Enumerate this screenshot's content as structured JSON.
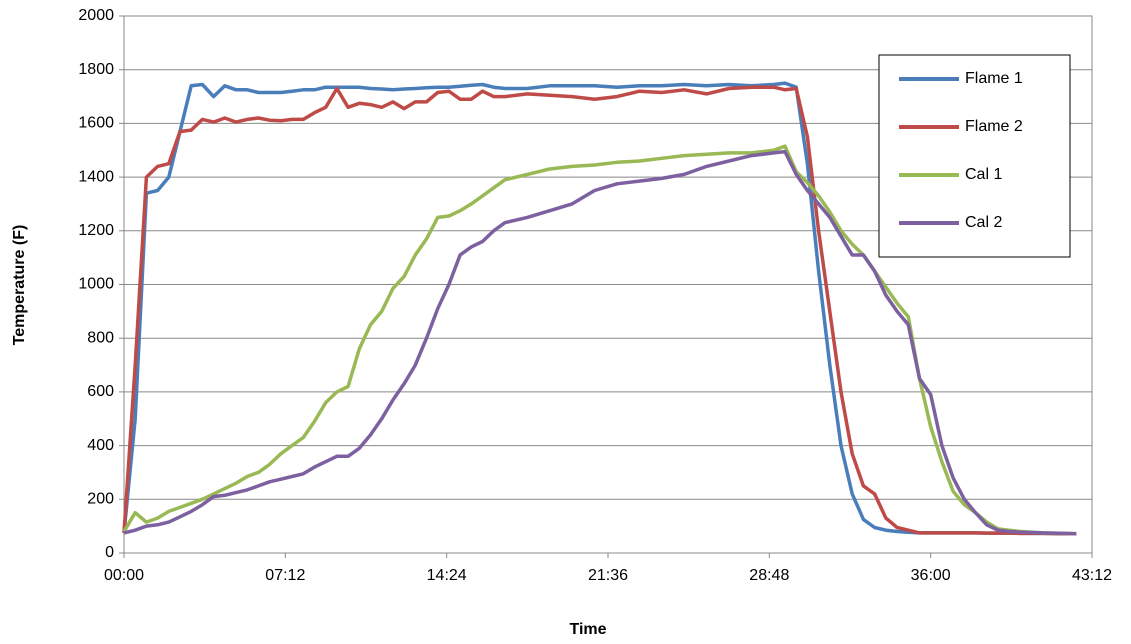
{
  "chart_data": {
    "type": "line",
    "x_label": "Time",
    "y_label": "Temperature (F)",
    "xlim": [
      0,
      43.2
    ],
    "xticks": [
      {
        "value": 0,
        "label": "00:00"
      },
      {
        "value": 7.2,
        "label": "07:12"
      },
      {
        "value": 14.4,
        "label": "14:24"
      },
      {
        "value": 21.6,
        "label": "21:36"
      },
      {
        "value": 28.8,
        "label": "28:48"
      },
      {
        "value": 36,
        "label": "36:00"
      },
      {
        "value": 43.2,
        "label": "43:12"
      }
    ],
    "ylim": [
      0,
      2000
    ],
    "yticks": [
      0,
      200,
      400,
      600,
      800,
      1000,
      1200,
      1400,
      1600,
      1800,
      2000
    ],
    "grid": true,
    "legend": "upper right",
    "x": [
      0,
      0.5,
      1,
      1.5,
      2,
      2.5,
      3,
      3.5,
      4,
      4.5,
      5,
      5.5,
      6,
      6.5,
      7,
      7.5,
      8,
      8.5,
      9,
      9.5,
      10,
      10.5,
      11,
      11.5,
      12,
      12.5,
      13,
      13.5,
      14,
      14.5,
      15,
      15.5,
      16,
      16.5,
      17,
      18,
      19,
      20,
      21,
      22,
      23,
      24,
      25,
      26,
      27,
      28,
      29,
      29.5,
      30,
      30.5,
      31,
      31.5,
      32,
      32.5,
      33,
      33.5,
      34,
      34.5,
      35,
      35.5,
      36,
      36.5,
      37,
      37.5,
      38,
      38.5,
      39,
      39.5,
      40,
      41,
      42,
      42.5
    ],
    "series": [
      {
        "name": "Flame 1",
        "color": "#4a7ebb",
        "values": [
          75,
          500,
          1340,
          1350,
          1400,
          1570,
          1740,
          1745,
          1700,
          1740,
          1725,
          1725,
          1715,
          1715,
          1715,
          1720,
          1725,
          1725,
          1735,
          1735,
          1735,
          1735,
          1730,
          1728,
          1725,
          1728,
          1730,
          1733,
          1735,
          1735,
          1738,
          1742,
          1745,
          1735,
          1730,
          1730,
          1740,
          1740,
          1740,
          1735,
          1740,
          1740,
          1745,
          1740,
          1745,
          1740,
          1745,
          1750,
          1735,
          1450,
          1050,
          700,
          400,
          220,
          125,
          95,
          85,
          80,
          77,
          75,
          75,
          75,
          75,
          75,
          75,
          74,
          74,
          74,
          73,
          73,
          72,
          72
        ]
      },
      {
        "name": "Flame 2",
        "color": "#be4b48",
        "values": [
          75,
          700,
          1400,
          1440,
          1450,
          1570,
          1575,
          1615,
          1605,
          1620,
          1605,
          1615,
          1620,
          1612,
          1610,
          1615,
          1615,
          1640,
          1660,
          1730,
          1660,
          1675,
          1670,
          1660,
          1680,
          1655,
          1680,
          1680,
          1715,
          1720,
          1690,
          1690,
          1720,
          1700,
          1700,
          1710,
          1705,
          1700,
          1690,
          1700,
          1720,
          1715,
          1725,
          1710,
          1730,
          1735,
          1735,
          1725,
          1730,
          1550,
          1200,
          900,
          600,
          370,
          250,
          220,
          130,
          95,
          85,
          75,
          75,
          75,
          75,
          75,
          75,
          74,
          74,
          74,
          73,
          73,
          72,
          72
        ]
      },
      {
        "name": "Cal 1",
        "color": "#98b954",
        "values": [
          80,
          150,
          115,
          130,
          155,
          170,
          185,
          200,
          220,
          240,
          260,
          285,
          300,
          330,
          370,
          400,
          430,
          490,
          560,
          600,
          620,
          760,
          850,
          900,
          985,
          1030,
          1110,
          1170,
          1250,
          1255,
          1275,
          1300,
          1330,
          1360,
          1390,
          1410,
          1430,
          1440,
          1445,
          1455,
          1460,
          1470,
          1480,
          1485,
          1490,
          1490,
          1500,
          1515,
          1420,
          1380,
          1330,
          1270,
          1200,
          1150,
          1110,
          1050,
          990,
          930,
          880,
          650,
          470,
          340,
          230,
          180,
          150,
          115,
          90,
          85,
          80,
          75,
          73,
          72
        ]
      },
      {
        "name": "Cal 2",
        "color": "#7d60a0",
        "values": [
          75,
          85,
          100,
          105,
          115,
          135,
          155,
          180,
          210,
          215,
          225,
          235,
          250,
          265,
          275,
          285,
          295,
          320,
          340,
          360,
          360,
          390,
          440,
          500,
          570,
          630,
          700,
          800,
          910,
          1000,
          1110,
          1140,
          1160,
          1200,
          1230,
          1250,
          1275,
          1300,
          1350,
          1375,
          1385,
          1395,
          1410,
          1440,
          1460,
          1480,
          1490,
          1495,
          1410,
          1350,
          1300,
          1250,
          1180,
          1110,
          1110,
          1050,
          960,
          900,
          850,
          650,
          590,
          400,
          280,
          200,
          150,
          105,
          85,
          80,
          78,
          75,
          73,
          72
        ]
      }
    ]
  }
}
